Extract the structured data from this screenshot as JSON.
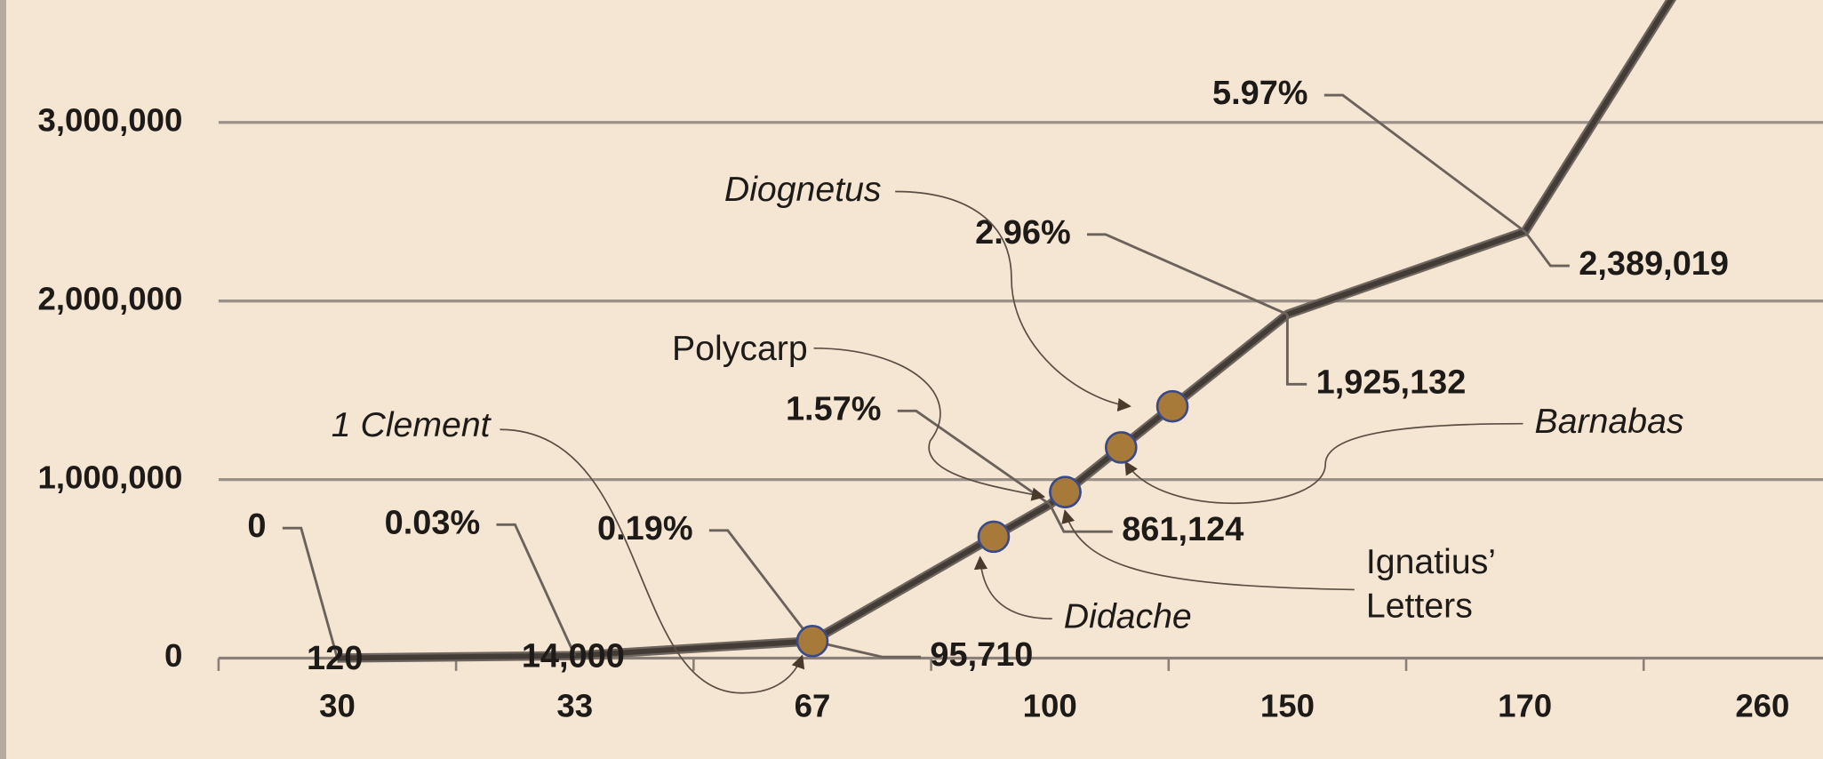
{
  "chart_data": {
    "type": "line",
    "categories": [
      "30",
      "33",
      "67",
      "100",
      "150",
      "170",
      "260"
    ],
    "values": [
      120,
      14000,
      95710,
      861124,
      1925132,
      2389019,
      4500000
    ],
    "value_labels": [
      "120",
      "14,000",
      "95,710",
      "861,124",
      "1,925,132",
      "2,389,019",
      null
    ],
    "percent_labels": [
      "0",
      "0.03%",
      "0.19%",
      "1.57%",
      "2.96%",
      "5.97%",
      null
    ],
    "color": "#423b36",
    "ylim": [
      0,
      3650000
    ],
    "yticks": [
      0,
      {
        "value": 1000000,
        "label": "1,000,000"
      },
      {
        "value": 2000000,
        "label": "2,000,000"
      },
      {
        "value": 3000000,
        "label": "3,000,000"
      }
    ],
    "grid": true,
    "documents": [
      {
        "label": [
          "1 Clement"
        ],
        "value": 95710
      },
      {
        "label": [
          "Didache"
        ],
        "value": 680000
      },
      {
        "label": [
          "Polycarp"
        ],
        "value": 930000
      },
      {
        "label": [
          "Ignatius’",
          "Letters"
        ],
        "value": 930000
      },
      {
        "label": [
          "Barnabas"
        ],
        "value": 1180000
      },
      {
        "label": [
          "Diognetus"
        ],
        "value": 1410000
      }
    ],
    "marker_color": "#a87a3a"
  }
}
